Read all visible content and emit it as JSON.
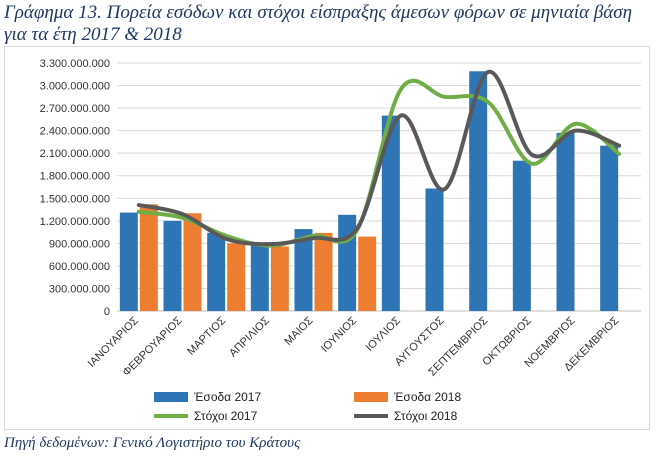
{
  "title": "Γράφημα 13. Πορεία εσόδων και στόχοι είσπραξης άμεσων φόρων σε μηνιαία βάση για τα έτη 2017 & 2018",
  "source": "Πηγή δεδομένων: Γενικό Λογιστήριο του Κράτους",
  "chart_data": {
    "type": "bar",
    "categories": [
      "ΙΑΝΟΥΑΡΙΟΣ",
      "ΦΕΒΡΟΥΑΡΙΟΣ",
      "ΜΑΡΤΙΟΣ",
      "ΑΠΡΙΛΙΟΣ",
      "ΜΑΙΟΣ",
      "ΙΟΥΝΙΟΣ",
      "ΙΟΥΛΙΟΣ",
      "ΑΥΓΟΥΣΤΟΣ",
      "ΣΕΠΤΕΜΒΡΙΟΣ",
      "ΟΚΤΩΒΡΙΟΣ",
      "ΝΟΕΜΒΡΙΟΣ",
      "ΔΕΚΕΜΒΡΙΟΣ"
    ],
    "ylim": [
      0,
      3300000000
    ],
    "ytick_labels": [
      "0",
      "300.000.000",
      "600.000.000",
      "900.000.000",
      "1.200.000.000",
      "1.500.000.000",
      "1.800.000.000",
      "2.100.000.000",
      "2.400.000.000",
      "2.700.000.000",
      "3.000.000.000",
      "3.300.000.000"
    ],
    "grid": true,
    "legend_position": "bottom",
    "bar_series": [
      {
        "name": "Έσοδα 2017",
        "color": "#2e75b6",
        "values": [
          1310000000,
          1200000000,
          1040000000,
          890000000,
          1090000000,
          1280000000,
          2600000000,
          1630000000,
          3190000000,
          2000000000,
          2370000000,
          2200000000
        ]
      },
      {
        "name": "Έσοδα 2018",
        "color": "#ed7d31",
        "values": [
          1420000000,
          1300000000,
          900000000,
          860000000,
          1040000000,
          990000000,
          null,
          null,
          null,
          null,
          null,
          null
        ]
      }
    ],
    "line_series": [
      {
        "name": "Στόχοι 2017",
        "color": "#70ad47",
        "values": [
          1320000000,
          1240000000,
          1000000000,
          870000000,
          1000000000,
          1080000000,
          2950000000,
          2850000000,
          2780000000,
          1960000000,
          2490000000,
          2090000000
        ]
      },
      {
        "name": "Στόχοι 2018",
        "color": "#595959",
        "values": [
          1410000000,
          1290000000,
          960000000,
          890000000,
          970000000,
          1100000000,
          2600000000,
          1620000000,
          3180000000,
          2080000000,
          2400000000,
          2200000000
        ]
      }
    ]
  }
}
